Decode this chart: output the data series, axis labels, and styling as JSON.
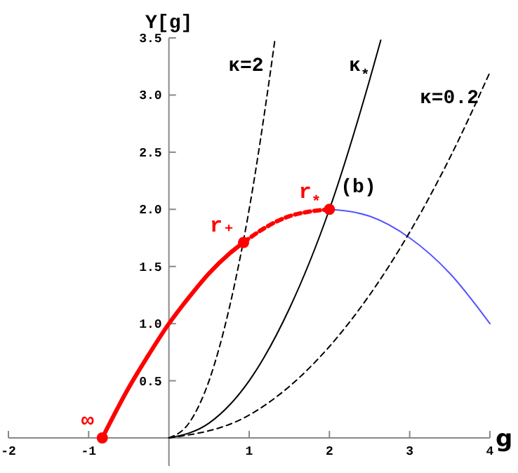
{
  "chart_data": {
    "type": "line",
    "xlabel": "g",
    "ylabel": "Υ[g]",
    "xlim": [
      -2,
      4
    ],
    "ylim": [
      0,
      3.5
    ],
    "xticks": [
      -2,
      -1,
      1,
      2,
      3,
      4
    ],
    "yticks": [
      0.5,
      {
        "value": 1,
        "label": "1.0"
      },
      1.5,
      {
        "value": 2,
        "label": "2.0"
      },
      2.5,
      {
        "value": 3,
        "label": "3.0"
      },
      3.5
    ],
    "grid": false,
    "series": [
      {
        "color": "#ff0000",
        "line_style": "solid",
        "x": [
          -0.83,
          -0.5,
          -0.25,
          0,
          0.25,
          0.5,
          0.75,
          0.93
        ],
        "values": [
          0,
          0.44,
          0.73,
          1,
          1.23,
          1.44,
          1.61,
          1.71
        ]
      },
      {
        "color": "#ff0000",
        "line_style": "dashed",
        "x": [
          0.93,
          1.2,
          1.5,
          1.75,
          2
        ],
        "values": [
          1.71,
          1.84,
          1.94,
          1.98,
          2
        ]
      },
      {
        "color": "#5555ff",
        "line_style": "solid",
        "x": [
          2,
          2.5,
          3,
          3.5,
          4
        ],
        "values": [
          2,
          1.94,
          1.75,
          1.44,
          1
        ]
      },
      {
        "name": "κ=2",
        "color": "#000000",
        "line_style": "dashed",
        "x": [
          0,
          0.25,
          0.5,
          0.75,
          1,
          1.25,
          1.32
        ],
        "values": [
          0,
          0.13,
          0.5,
          1.13,
          2,
          3.13,
          3.48
        ]
      },
      {
        "name": "κ$_{*}$",
        "color": "#000000",
        "line_style": "solid",
        "x": [
          0,
          0.5,
          1,
          1.5,
          2,
          2.5,
          2.64
        ],
        "values": [
          0,
          0.13,
          0.5,
          1.13,
          2,
          3.13,
          3.48
        ]
      },
      {
        "name": "κ=0.2",
        "color": "#000000",
        "line_style": "dashed",
        "x": [
          0,
          1,
          2,
          3,
          3.5,
          4
        ],
        "values": [
          0,
          0.2,
          0.8,
          1.8,
          2.45,
          3.2
        ]
      },
      {
        "type": "scatter",
        "marker": "circle",
        "color": "#ff0000",
        "x": [
          -0.83,
          0.93,
          2
        ],
        "values": [
          0,
          1.71,
          2
        ]
      }
    ],
    "annotations": [
      {
        "text": "∞",
        "x": -0.83,
        "y": 0
      },
      {
        "text": "r₊",
        "x": 0.93,
        "y": 1.71
      },
      {
        "text": "r$_{*}$",
        "x": 2,
        "y": 2
      },
      "(b)"
    ]
  }
}
